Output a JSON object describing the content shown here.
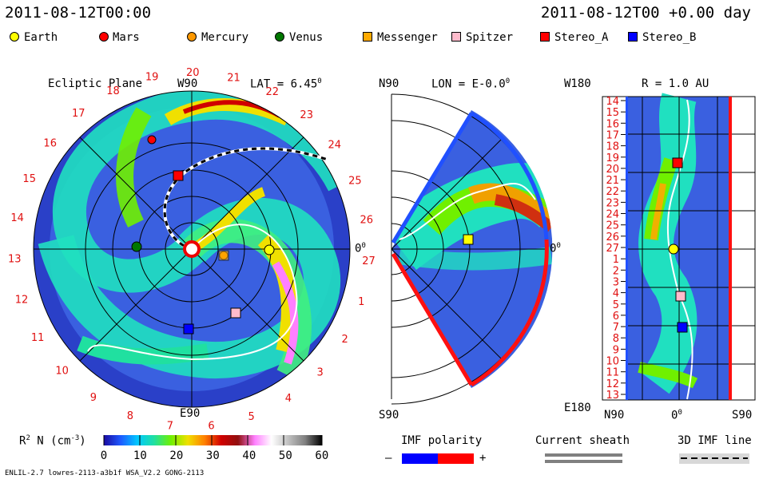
{
  "header": {
    "left_timestamp": "2011-08-12T00:00",
    "right_timestamp": "2011-08-12T00 +0.00 day"
  },
  "legend": [
    {
      "label": "Earth",
      "color": "#ffff00",
      "shape": "circle"
    },
    {
      "label": "Mars",
      "color": "#ff0000",
      "shape": "circle"
    },
    {
      "label": "Mercury",
      "color": "#ff9900",
      "shape": "circle"
    },
    {
      "label": "Venus",
      "color": "#007700",
      "shape": "circle"
    },
    {
      "label": "Messenger",
      "color": "#ffaa00",
      "shape": "square"
    },
    {
      "label": "Spitzer",
      "color": "#ffbbcc",
      "shape": "square"
    },
    {
      "label": "Stereo_A",
      "color": "#ff0000",
      "shape": "square"
    },
    {
      "label": "Stereo_B",
      "color": "#0000ff",
      "shape": "square"
    }
  ],
  "chart_data": [
    {
      "type": "heatmap",
      "title": "Ecliptic Plane",
      "lat_label": "LAT = 6.45",
      "lat_sup": "0",
      "top_label": "W90",
      "bottom_label": "E90",
      "right_label": "0",
      "right_sup": "0",
      "carrington_rotation_labels": [
        "19",
        "20",
        "21",
        "22",
        "23",
        "24",
        "25",
        "26",
        "27",
        "1",
        "2",
        "3",
        "4",
        "5",
        "6",
        "7",
        "8",
        "9",
        "10",
        "11",
        "12",
        "13",
        "14",
        "15",
        "16",
        "17",
        "18"
      ],
      "bodies": [
        "Earth",
        "Mars",
        "Mercury",
        "Venus",
        "Messenger",
        "Spitzer",
        "Stereo_A",
        "Stereo_B"
      ]
    },
    {
      "type": "heatmap",
      "title": "LON = E-0.0",
      "title_sup": "0",
      "top_label": "N90",
      "bottom_label": "S90",
      "right_label": "0",
      "right_sup": "0",
      "bodies": [
        "Earth"
      ]
    },
    {
      "type": "heatmap",
      "title": "R = 1.0 AU",
      "top_label": "W180",
      "bottom_left_label": "E180",
      "x_labels": [
        "N90",
        "0",
        "S90"
      ],
      "x_sup": "0",
      "y_labels": [
        "14",
        "15",
        "16",
        "17",
        "18",
        "19",
        "20",
        "21",
        "22",
        "23",
        "24",
        "25",
        "26",
        "27",
        "1",
        "2",
        "3",
        "4",
        "5",
        "6",
        "7",
        "8",
        "9",
        "10",
        "11",
        "12",
        "13"
      ],
      "bodies": [
        "Stereo_A",
        "Earth",
        "Spitzer",
        "Stereo_B"
      ]
    },
    {
      "type": "colorbar",
      "label": "R",
      "label_sup": "2",
      "label_rest": " N (cm",
      "label_rest_sup": "-3",
      "label_end": ")",
      "ticks": [
        0,
        10,
        20,
        30,
        40,
        50,
        60
      ],
      "range": [
        0,
        60
      ],
      "colors": [
        "#1a0aa0",
        "#1e5aff",
        "#00c8ff",
        "#20e0a0",
        "#70f000",
        "#f0e000",
        "#ff8000",
        "#d00000",
        "#901010",
        "#ff80ff",
        "#ffffff",
        "#c0c0c0",
        "#808080",
        "#000000"
      ]
    }
  ],
  "imf_polarity": {
    "title": "IMF polarity",
    "minus": "–",
    "plus": "+",
    "neg_color": "#0000ff",
    "pos_color": "#ff0000"
  },
  "current_sheath": {
    "title": "Current sheath"
  },
  "imf_line": {
    "title": "3D IMF line"
  },
  "footer": {
    "left": "ENLIL-2.7 lowres-2113-a3b1f WSA_V2.2 GONG-2113"
  }
}
